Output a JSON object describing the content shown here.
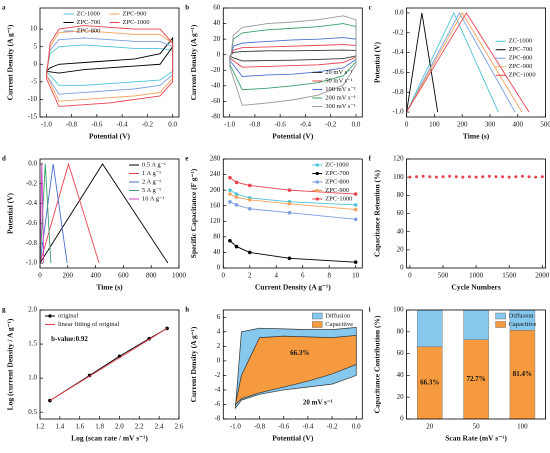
{
  "chart_data": [
    {
      "type": "line",
      "label": "a",
      "xlabel": "Potential (V)",
      "ylabel": "Current Density (A g⁻¹)",
      "xlim": [
        -1.05,
        0.05
      ],
      "xticks": [
        {
          "value": -1,
          "label": "-1.0"
        },
        -0.8,
        -0.6,
        -0.4,
        -0.2,
        {
          "value": 0,
          "label": "0.0"
        }
      ],
      "ylim": [
        -15,
        16
      ],
      "yticks": [
        -15,
        -10,
        -5,
        0,
        5,
        10
      ],
      "legend": "upper center",
      "legend_columns": 2,
      "series": [
        {
          "name": "ZC-1000",
          "color": "#4cc3d9",
          "x": [
            -1.0,
            -0.97,
            -0.9,
            -0.7,
            -0.5,
            -0.3,
            -0.1,
            0.0,
            0.0,
            -0.1,
            -0.3,
            -0.5,
            -0.7,
            -0.9,
            -1.0
          ],
          "values": [
            -2,
            3,
            5,
            5.5,
            5,
            4.5,
            4.5,
            4,
            -2,
            -4.5,
            -5,
            -5.5,
            -6,
            -6,
            -2
          ]
        },
        {
          "name": "ZPC-700",
          "color": "#000000",
          "x": [
            -1.0,
            -0.97,
            -0.9,
            -0.7,
            -0.5,
            -0.3,
            -0.1,
            0.0,
            0.0,
            -0.1,
            -0.3,
            -0.5,
            -0.7,
            -0.9,
            -1.0
          ],
          "values": [
            -2,
            -1,
            0,
            0.5,
            1,
            1.5,
            3,
            7.5,
            5,
            0,
            -0.5,
            -1,
            -1.5,
            -2.5,
            -2
          ]
        },
        {
          "name": "ZPC-800",
          "color": "#7b9fe0",
          "x": [
            -1.0,
            -0.97,
            -0.9,
            -0.7,
            -0.5,
            -0.3,
            -0.1,
            0.0,
            0.0,
            -0.1,
            -0.3,
            -0.5,
            -0.7,
            -0.9,
            -1.0
          ],
          "values": [
            -3,
            4,
            7,
            7.5,
            7,
            6.5,
            6.5,
            5,
            -3,
            -6,
            -7,
            -7.5,
            -8,
            -8.5,
            -3
          ]
        },
        {
          "name": "ZPC-900",
          "color": "#f5a25a",
          "x": [
            -1.0,
            -0.97,
            -0.9,
            -0.7,
            -0.5,
            -0.3,
            -0.1,
            0.0,
            0.0,
            -0.1,
            -0.3,
            -0.5,
            -0.7,
            -0.9,
            -1.0
          ],
          "values": [
            -3,
            5,
            9,
            9.5,
            9,
            8.5,
            8.5,
            6,
            -4,
            -8,
            -9,
            -9.5,
            -10,
            -10.5,
            -3
          ]
        },
        {
          "name": "ZPC-1000",
          "color": "#e8424f",
          "x": [
            -1.0,
            -0.97,
            -0.9,
            -0.7,
            -0.5,
            -0.3,
            -0.1,
            0.0,
            0.0,
            -0.1,
            -0.3,
            -0.5,
            -0.7,
            -0.9,
            -1.0
          ],
          "values": [
            -4,
            6,
            10,
            11,
            10.5,
            10,
            10,
            6,
            -5,
            -9,
            -10,
            -11,
            -11.5,
            -12,
            -4
          ]
        }
      ]
    },
    {
      "type": "line",
      "label": "b",
      "xlabel": "Potential (V)",
      "ylabel": "Current Density (A g⁻¹)",
      "xlim": [
        -1.05,
        0.05
      ],
      "xticks": [
        {
          "value": -1,
          "label": "-1.0"
        },
        -0.8,
        -0.6,
        -0.4,
        -0.2,
        {
          "value": 0,
          "label": "0.0"
        }
      ],
      "ylim": [
        -80,
        60
      ],
      "yticks": [
        -80,
        -60,
        -40,
        -20,
        0,
        20,
        40,
        60
      ],
      "legend": "lower right",
      "legend_columns": 1,
      "series": [
        {
          "name": "20 mV s⁻¹",
          "color": "#333333",
          "x": [
            -1.0,
            -0.97,
            -0.9,
            -0.7,
            -0.5,
            -0.3,
            -0.1,
            0.0,
            0.0,
            -0.1,
            -0.3,
            -0.5,
            -0.7,
            -0.9,
            -1.0
          ],
          "values": [
            -2,
            3,
            4,
            5,
            5,
            5.5,
            6,
            5.5,
            -1.5,
            -5,
            -6,
            -7,
            -7.5,
            -8,
            -2
          ]
        },
        {
          "name": "50 mV s⁻¹",
          "color": "#e8424f",
          "x": [
            -1.0,
            -0.97,
            -0.9,
            -0.7,
            -0.5,
            -0.3,
            -0.1,
            0.0,
            0.0,
            -0.1,
            -0.3,
            -0.5,
            -0.7,
            -0.9,
            -1.0
          ],
          "values": [
            -4,
            6,
            9,
            10,
            11,
            12,
            13,
            12,
            -3,
            -10,
            -13,
            -14,
            -15,
            -16,
            -4
          ]
        },
        {
          "name": "100 mV s⁻¹",
          "color": "#4a6fd0",
          "x": [
            -1.0,
            -0.97,
            -0.9,
            -0.7,
            -0.5,
            -0.3,
            -0.1,
            0.0,
            0.0,
            -0.1,
            -0.3,
            -0.5,
            -0.7,
            -0.9,
            -1.0
          ],
          "values": [
            -7,
            11,
            15,
            17,
            19,
            20,
            22,
            20,
            -6,
            -17,
            -22,
            -25,
            -26,
            -28,
            -7
          ]
        },
        {
          "name": "200 mV s⁻¹",
          "color": "#3aa06a",
          "x": [
            -1.0,
            -0.97,
            -0.9,
            -0.7,
            -0.5,
            -0.3,
            -0.1,
            0.0,
            0.0,
            -0.1,
            -0.3,
            -0.5,
            -0.7,
            -0.9,
            -1.0
          ],
          "values": [
            -12,
            20,
            28,
            32,
            34,
            36,
            40,
            36,
            -9,
            -27,
            -36,
            -40,
            -43,
            -45,
            -12
          ]
        },
        {
          "name": "300 mV s⁻¹",
          "color": "#9a9a9a",
          "x": [
            -1.0,
            -0.97,
            -0.9,
            -0.7,
            -0.5,
            -0.3,
            -0.1,
            0.0,
            0.0,
            -0.1,
            -0.3,
            -0.5,
            -0.7,
            -0.9,
            -1.0
          ],
          "values": [
            -15,
            25,
            35,
            40,
            42,
            45,
            50,
            45,
            -13,
            -39,
            -52,
            -58,
            -62,
            -65,
            -15
          ]
        }
      ]
    },
    {
      "type": "line",
      "label": "c",
      "xlabel": "Time (s)",
      "ylabel": "Potential (V)",
      "xlim": [
        0,
        500
      ],
      "xticks": [
        0,
        100,
        200,
        300,
        400,
        500
      ],
      "ylim": [
        -1.05,
        0.05
      ],
      "yticks": [
        {
          "value": -1,
          "label": "-1.0"
        },
        -0.8,
        -0.6,
        -0.4,
        -0.2,
        {
          "value": 0,
          "label": "0.0"
        }
      ],
      "legend": "right",
      "legend_columns": 1,
      "series": [
        {
          "name": "ZC-1000",
          "color": "#4cc3d9",
          "x": [
            0,
            170,
            330
          ],
          "values": [
            -1,
            0,
            -1
          ]
        },
        {
          "name": "ZPC-700",
          "color": "#000000",
          "x": [
            0,
            55,
            112
          ],
          "values": [
            -1,
            0,
            -1
          ]
        },
        {
          "name": "ZPC-800",
          "color": "#7b9fe0",
          "x": [
            0,
            190,
            390
          ],
          "values": [
            -1,
            0,
            -1
          ]
        },
        {
          "name": "ZPC-900",
          "color": "#f5a25a",
          "x": [
            0,
            200,
            415
          ],
          "values": [
            -1,
            0,
            -1
          ]
        },
        {
          "name": "ZPC-1000",
          "color": "#e8424f",
          "x": [
            0,
            215,
            440
          ],
          "values": [
            -1,
            0,
            -1
          ]
        }
      ]
    },
    {
      "type": "line",
      "label": "d",
      "xlabel": "Time (s)",
      "ylabel": "Potential (V)",
      "xlim": [
        0,
        1000
      ],
      "xticks": [
        0,
        200,
        400,
        600,
        800,
        1000
      ],
      "ylim": [
        -1.05,
        0.05
      ],
      "yticks": [
        {
          "value": -1,
          "label": "-1.0"
        },
        -0.8,
        -0.6,
        -0.4,
        -0.2,
        {
          "value": 0,
          "label": "0.0"
        }
      ],
      "legend": "upper right",
      "legend_columns": 1,
      "series": [
        {
          "name": "0.5 A g⁻¹",
          "color": "#000000",
          "x": [
            0,
            450,
            920
          ],
          "values": [
            -1,
            0,
            -1
          ]
        },
        {
          "name": "1 A g⁻¹",
          "color": "#e8424f",
          "x": [
            0,
            205,
            425
          ],
          "values": [
            -1,
            0,
            -1
          ]
        },
        {
          "name": "2 A g⁻¹",
          "color": "#4a6fd0",
          "x": [
            0,
            95,
            195
          ],
          "values": [
            -1,
            0,
            -1
          ]
        },
        {
          "name": "5 A g⁻¹",
          "color": "#3aa06a",
          "x": [
            0,
            38,
            78
          ],
          "values": [
            -1,
            0,
            -1
          ]
        },
        {
          "name": "10 A g⁻¹",
          "color": "#d040c8",
          "x": [
            0,
            13,
            27
          ],
          "values": [
            -1,
            0,
            -1
          ]
        }
      ]
    },
    {
      "type": "line",
      "label": "e",
      "markers": true,
      "xlabel": "Current Density (A g⁻¹)",
      "ylabel": "Specific Capacitance (F g⁻¹)",
      "xlim": [
        0,
        10.5
      ],
      "xticks": [
        0,
        2,
        4,
        6,
        8,
        10
      ],
      "ylim": [
        0,
        280
      ],
      "yticks": [
        0,
        40,
        80,
        120,
        160,
        200,
        240,
        280
      ],
      "legend": "upper right",
      "legend_columns": 1,
      "x": [
        0.5,
        1,
        2,
        5,
        10
      ],
      "series": [
        {
          "name": "ZC-1000",
          "color": "#4cc3d9",
          "values": [
            200,
            190,
            180,
            170,
            162
          ]
        },
        {
          "name": "ZPC-700",
          "color": "#000000",
          "values": [
            70,
            55,
            40,
            25,
            15
          ]
        },
        {
          "name": "ZPC-800",
          "color": "#7b9fe0",
          "values": [
            170,
            162,
            152,
            142,
            125
          ]
        },
        {
          "name": "ZPC-900",
          "color": "#f5a25a",
          "values": [
            190,
            182,
            175,
            165,
            150
          ]
        },
        {
          "name": "ZPC-1000",
          "color": "#e8424f",
          "values": [
            232,
            220,
            212,
            200,
            190
          ]
        }
      ]
    },
    {
      "type": "scatter",
      "label": "f",
      "xlabel": "Cycle Numbers",
      "ylabel": "Capacitance Retention (%)",
      "xlim": [
        -50,
        2050
      ],
      "xticks": [
        0,
        500,
        1000,
        1500,
        2000
      ],
      "ylim": [
        0,
        120
      ],
      "yticks": [
        0,
        20,
        40,
        60,
        80,
        100,
        120
      ],
      "x": [
        0,
        100,
        200,
        300,
        400,
        500,
        600,
        700,
        800,
        900,
        1000,
        1100,
        1200,
        1300,
        1400,
        1500,
        1600,
        1700,
        1800,
        1900,
        2000
      ],
      "values": [
        100,
        100.5,
        101,
        100.5,
        100,
        100.5,
        101,
        100.5,
        100,
        100.5,
        100,
        100.5,
        101,
        100.5,
        100.5,
        100,
        100.5,
        101,
        100.5,
        100,
        100.5
      ],
      "color": "#e8424f"
    },
    {
      "type": "line",
      "label": "g",
      "xlabel": "Log (scan rate / mV s⁻¹)",
      "ylabel": "Log (current Density / A g⁻¹)",
      "xlim": [
        1.2,
        2.6
      ],
      "xticks": [
        1.2,
        1.4,
        1.6,
        1.8,
        {
          "value": 2,
          "label": "2.0"
        },
        2.2,
        2.4,
        2.6
      ],
      "ylim": [
        0.4,
        2.0
      ],
      "yticks": [
        0.5,
        {
          "value": 1,
          "label": "1.0"
        },
        1.5,
        {
          "value": 2,
          "label": "2.0"
        }
      ],
      "legend": "upper left",
      "legend_columns": 1,
      "annotations": [
        "b-value:0.92"
      ],
      "series": [
        {
          "name": "original",
          "color": "#000000",
          "markers": true,
          "x": [
            1.3,
            1.7,
            2.0,
            2.3,
            2.48
          ],
          "values": [
            0.67,
            1.04,
            1.32,
            1.58,
            1.73
          ]
        },
        {
          "name": "linear fitting of original",
          "color": "#e8424f",
          "x": [
            1.3,
            2.48
          ],
          "values": [
            0.67,
            1.73
          ]
        }
      ]
    },
    {
      "type": "area",
      "label": "h",
      "xlabel": "Potential (V)",
      "ylabel": "Current Density (A g⁻¹)",
      "xlim": [
        -1.1,
        0.05
      ],
      "xticks": [
        {
          "value": -1,
          "label": "-1.0"
        },
        -0.8,
        -0.6,
        -0.4,
        -0.2,
        {
          "value": 0,
          "label": "0.0"
        }
      ],
      "ylim": [
        -8,
        7
      ],
      "yticks": [
        -8,
        -6,
        -4,
        -2,
        0,
        2,
        4,
        6
      ],
      "legend": "upper right",
      "legend_columns": 1,
      "annotations": [
        "66.3%",
        "20 mV s⁻¹"
      ],
      "series": [
        {
          "name": "Diffusion",
          "color": "#86c8ee",
          "x": [
            -1.0,
            -0.95,
            -0.8,
            -0.6,
            -0.4,
            -0.2,
            0.0,
            0.0,
            -0.2,
            -0.4,
            -0.6,
            -0.8,
            -0.95,
            -1.0
          ],
          "values": [
            -6.5,
            4,
            4.5,
            4.4,
            4.3,
            4.3,
            4.6,
            -2,
            -3.2,
            -3.6,
            -4,
            -4.6,
            -5.4,
            -6.5
          ]
        },
        {
          "name": "Capacitive",
          "color": "#f59a3e",
          "x": [
            -1.0,
            -0.95,
            -0.8,
            -0.6,
            -0.4,
            -0.2,
            0.0,
            0.0,
            -0.2,
            -0.4,
            -0.6,
            -0.8,
            -0.95,
            -1.0
          ],
          "values": [
            -6,
            -2,
            3.2,
            3.4,
            3.3,
            3.2,
            3.5,
            -0.5,
            -1.8,
            -2.8,
            -3.6,
            -4.4,
            -5.2,
            -6
          ]
        }
      ]
    },
    {
      "type": "bar",
      "stacked": true,
      "label": "i",
      "xlabel": "Scan Rate (mV s⁻¹)",
      "ylabel": "Capacitance Contribution (%)",
      "categories": [
        "20",
        "50",
        "100"
      ],
      "ylim": [
        0,
        100
      ],
      "yticks": [
        0,
        20,
        40,
        60,
        80,
        100
      ],
      "legend": "upper right",
      "legend_columns": 1,
      "series": [
        {
          "name": "Capacitive",
          "color": "#f59a3e",
          "values": [
            66.3,
            72.7,
            81.4
          ],
          "value_labels": [
            "66.3%",
            "72.7%",
            "81.4%"
          ]
        },
        {
          "name": "Diffusion",
          "color": "#86c8ee",
          "values": [
            33.7,
            27.3,
            18.6
          ]
        }
      ]
    }
  ]
}
